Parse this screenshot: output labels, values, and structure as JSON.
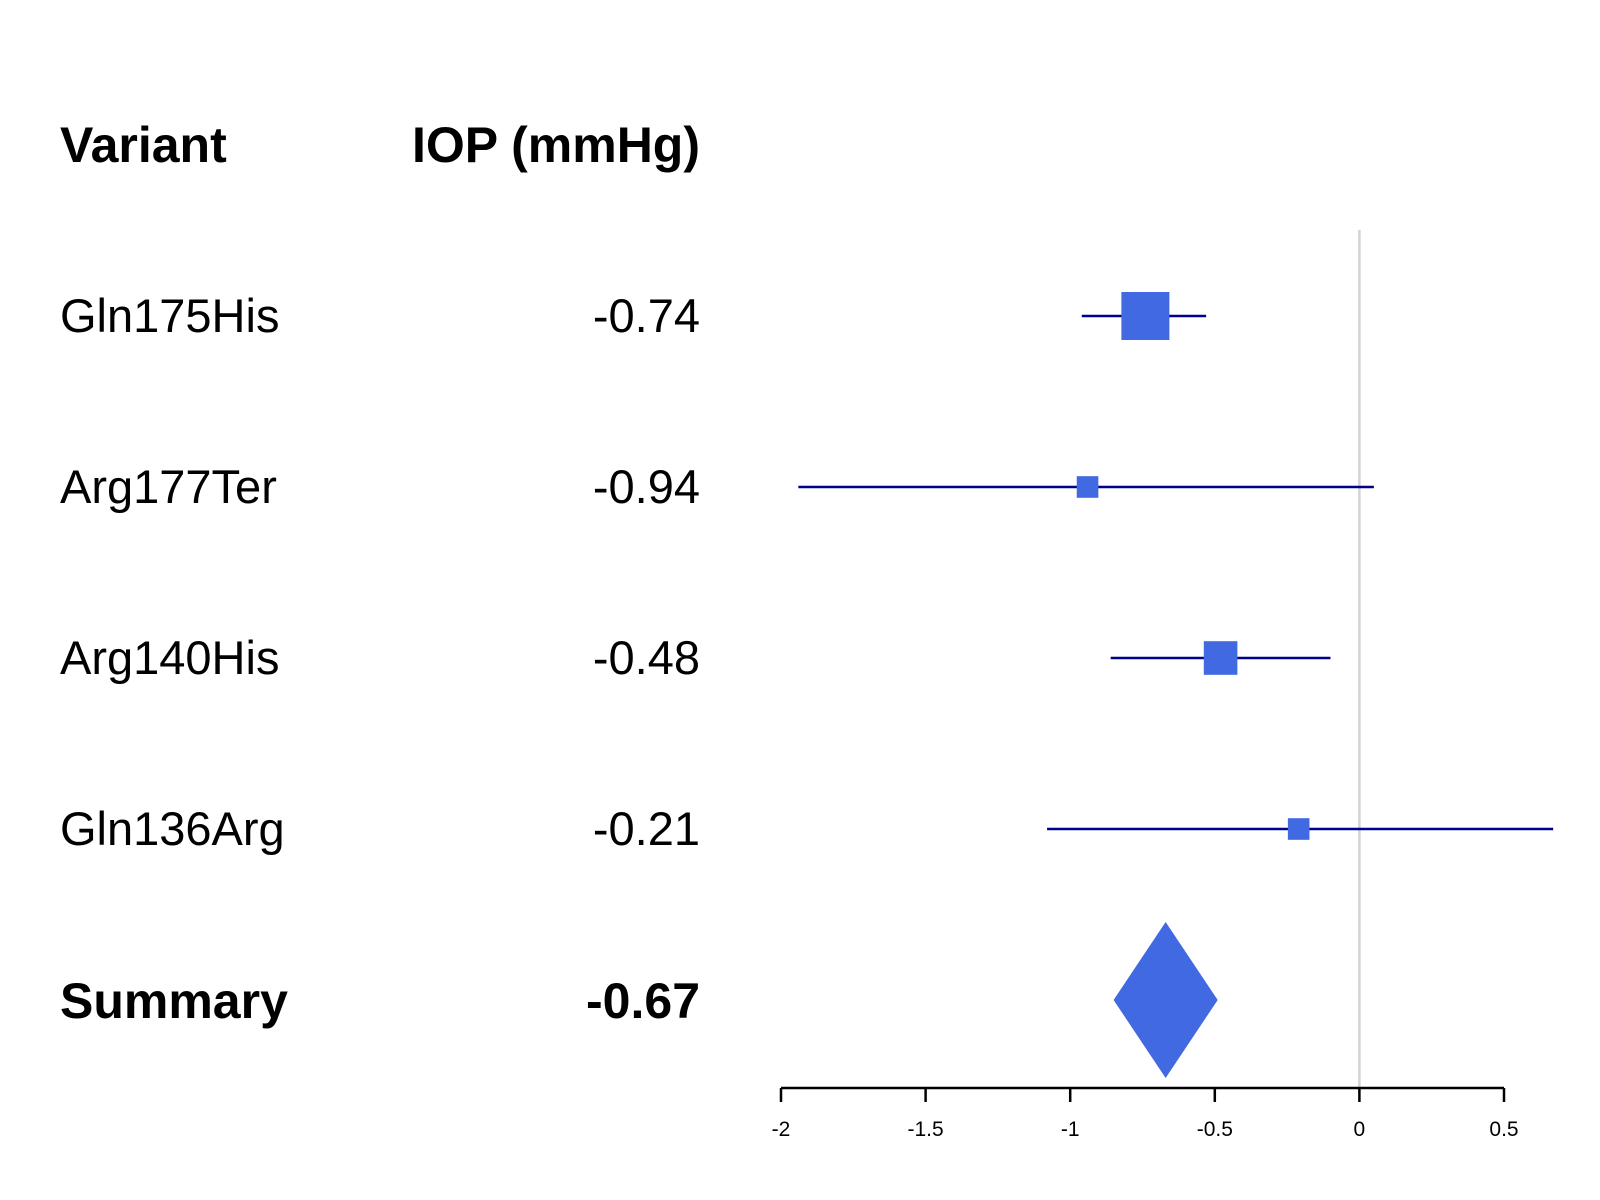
{
  "chart_data": {
    "type": "forest",
    "headers": {
      "variant": "Variant",
      "estimate": "IOP (mmHg)"
    },
    "rows": [
      {
        "label": "Gln175His",
        "estimate": -0.74,
        "ci": [
          -0.96,
          -0.53
        ],
        "weight": 1.0,
        "display": "-0.74"
      },
      {
        "label": "Arg177Ter",
        "estimate": -0.94,
        "ci": [
          -1.94,
          0.05
        ],
        "weight": 0.45,
        "display": "-0.94"
      },
      {
        "label": "Arg140His",
        "estimate": -0.48,
        "ci": [
          -0.86,
          -0.1
        ],
        "weight": 0.7,
        "display": "-0.48"
      },
      {
        "label": "Gln136Arg",
        "estimate": -0.21,
        "ci": [
          -1.08,
          0.67
        ],
        "weight": 0.45,
        "display": "-0.21"
      }
    ],
    "summary": {
      "label": "Summary",
      "estimate": -0.67,
      "ci": [
        -0.85,
        -0.49
      ],
      "display": "-0.67"
    },
    "xlim": [
      -2,
      0.5
    ],
    "xticks": [
      -2,
      -1.5,
      -1,
      -0.5,
      0,
      0.5
    ],
    "xtick_labels": [
      "-2",
      "-1.5",
      "-1",
      "-0.5",
      "0",
      "0.5"
    ],
    "reference_line": 0,
    "colors": {
      "marker": "#4169E1",
      "ci_line": "#00008B",
      "reference": "#D3D3D3",
      "axis": "#000000"
    }
  }
}
